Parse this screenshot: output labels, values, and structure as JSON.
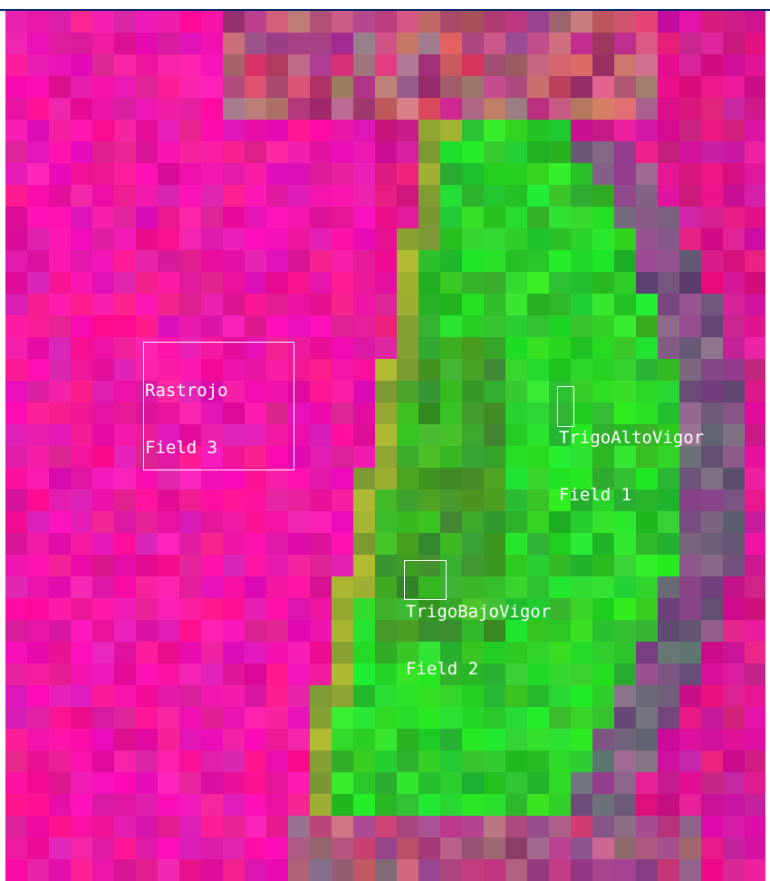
{
  "colors": {
    "background_magenta": "#d81a8e",
    "vegetation_green": "#22c832",
    "roi_outline": "#ffffff",
    "window_edge": "#0a246a"
  },
  "regions": [
    {
      "id": "field-3",
      "class_name": "Rastrojo",
      "field_name": "Field 3"
    },
    {
      "id": "field-1",
      "class_name": "TrigoAltoVigor",
      "field_name": "Field 1"
    },
    {
      "id": "field-2",
      "class_name": "TrigoBajoVigor",
      "field_name": "Field 2"
    }
  ]
}
